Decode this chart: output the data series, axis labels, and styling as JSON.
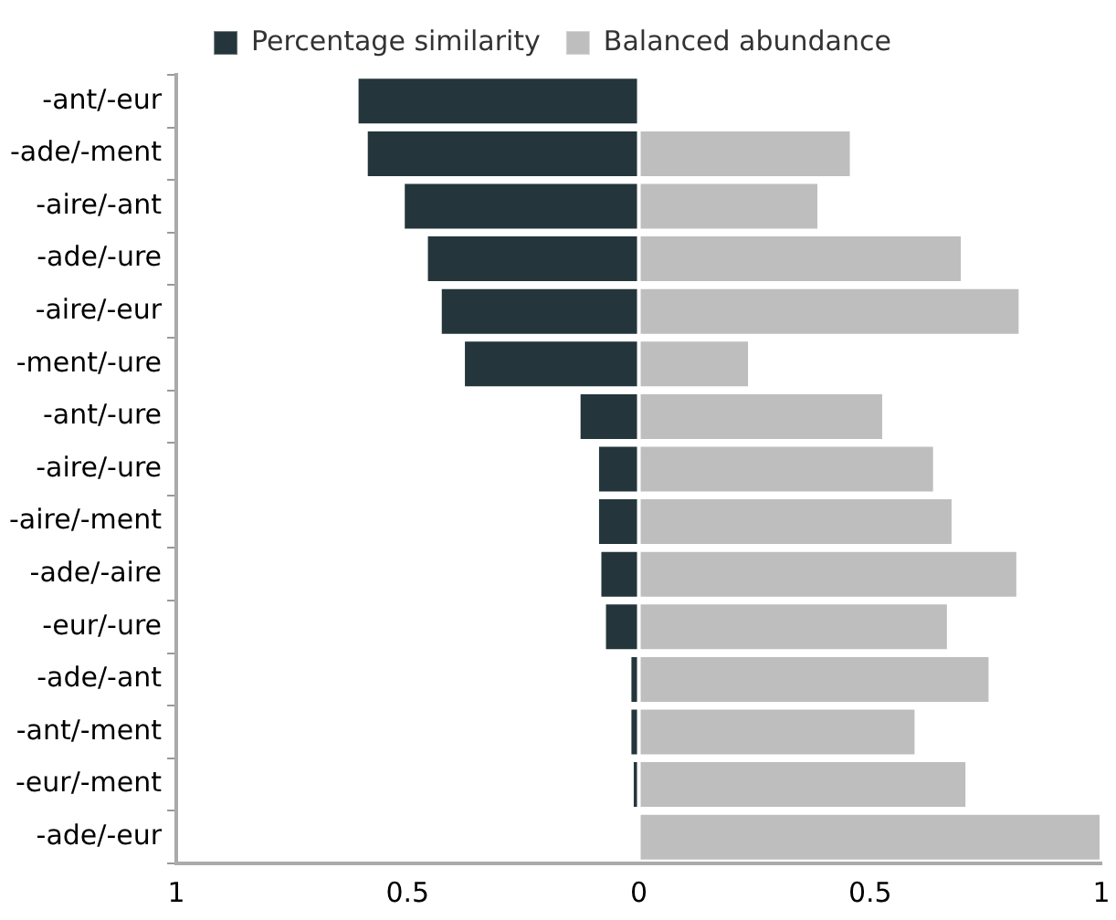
{
  "chart_data": {
    "type": "bar",
    "orientation": "horizontal",
    "stacked": true,
    "categories": [
      "-ant/-eur",
      "-ade/-ment",
      "-aire/-ant",
      "-ade/-ure",
      "-aire/-eur",
      "-ment/-ure",
      "-ant/-ure",
      "-aire/-ure",
      "-aire/-ment",
      "-ade/-aire",
      "-eur/-ure",
      "-ade/-ant",
      "-ant/-ment",
      "-eur/-ment",
      "-ade/-eur"
    ],
    "series": [
      {
        "name": "Percentage similarity",
        "color": "#24363b",
        "values": [
          -0.61,
          -0.59,
          -0.51,
          -0.46,
          -0.43,
          -0.38,
          -0.13,
          -0.09,
          -0.09,
          -0.085,
          -0.075,
          -0.02,
          -0.02,
          -0.015,
          0
        ]
      },
      {
        "name": "Balanced abundance",
        "color": "#bebebe",
        "values": [
          null,
          0.46,
          0.39,
          0.7,
          0.825,
          0.24,
          0.53,
          0.64,
          0.68,
          0.82,
          0.67,
          0.76,
          0.6,
          0.71,
          1.0
        ]
      }
    ],
    "xlim": [
      -1,
      1
    ],
    "xticks": [
      {
        "value": -1,
        "label": "1"
      },
      {
        "value": -0.5,
        "label": "0.5"
      },
      0,
      0.5,
      1
    ],
    "grid": false,
    "legend": "top"
  }
}
